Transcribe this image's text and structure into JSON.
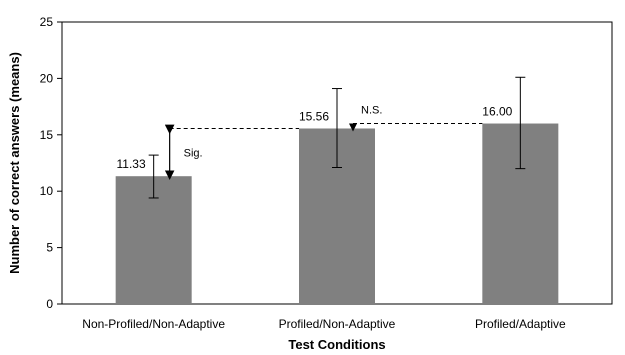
{
  "chart_data": {
    "type": "bar",
    "categories": [
      "Non-Profiled/Non-Adaptive",
      "Profiled/Non-Adaptive",
      "Profiled/Adaptive"
    ],
    "values": [
      11.33,
      15.56,
      16.0
    ],
    "value_labels": [
      "11.33",
      "15.56",
      "16.00"
    ],
    "error_high": [
      13.2,
      19.1,
      20.1
    ],
    "error_low": [
      9.4,
      12.1,
      12.0
    ],
    "xlabel": "Test Conditions",
    "ylabel": "Number of correct answers (means)",
    "ylim": [
      0,
      25
    ],
    "yticks": [
      0,
      5,
      10,
      15,
      20,
      25
    ],
    "grid": false,
    "bar_color": "#808080",
    "annotations": [
      {
        "text": "Sig.",
        "from_category": 0,
        "to_category": 1
      },
      {
        "text": "N.S.",
        "from_category": 1,
        "to_category": 2
      }
    ]
  }
}
